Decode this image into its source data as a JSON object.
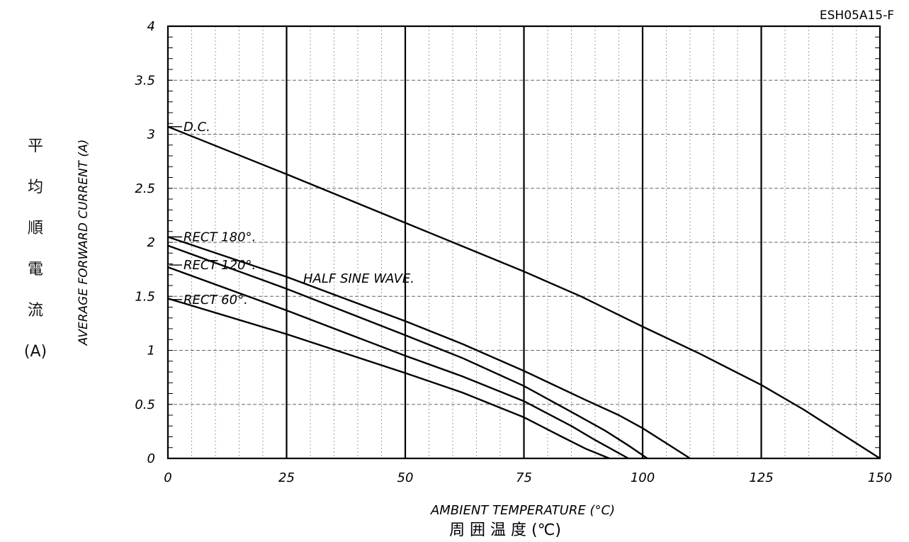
{
  "chart_data": {
    "type": "line",
    "chart_id": "ESH05A15-F",
    "xlabel": "AMBIENT TEMPERATURE (°C)",
    "xlabel_jp": "周 囲 温 度 (℃)",
    "ylabel": "AVERAGE FORWARD CURRENT (A)",
    "ylabel_jp": [
      "平",
      "均",
      "順",
      "電",
      "流",
      "(A)"
    ],
    "xlim": [
      0,
      150
    ],
    "ylim": [
      0,
      4
    ],
    "x_ticks": [
      "0",
      "25",
      "50",
      "75",
      "100",
      "125",
      "150"
    ],
    "y_ticks": [
      "0",
      "0.5",
      "1",
      "1.5",
      "2",
      "2.5",
      "3",
      "3.5",
      "4"
    ],
    "grid": true,
    "annotation": "HALF SINE WAVE.",
    "series": [
      {
        "name": "D.C.",
        "x": [
          0,
          25,
          50,
          75,
          87,
          100,
          112,
          125,
          134,
          150
        ],
        "y": [
          3.07,
          2.63,
          2.18,
          1.73,
          1.5,
          1.22,
          0.97,
          0.68,
          0.45,
          0.0
        ]
      },
      {
        "name": "RECT 180°.",
        "x": [
          0,
          25,
          50,
          62,
          75,
          88,
          95,
          100,
          105,
          110
        ],
        "y": [
          2.05,
          1.68,
          1.27,
          1.06,
          0.81,
          0.54,
          0.4,
          0.28,
          0.14,
          0.0
        ]
      },
      {
        "name": "RECT 120°.",
        "x": [
          0,
          25,
          50,
          62,
          75,
          85,
          92,
          97,
          101
        ],
        "y": [
          1.97,
          1.57,
          1.14,
          0.93,
          0.67,
          0.43,
          0.26,
          0.12,
          0.0
        ]
      },
      {
        "name": "RECT 60°.",
        "x": [
          0,
          25,
          50,
          62,
          75,
          85,
          90,
          97
        ],
        "y": [
          1.77,
          1.37,
          0.95,
          0.76,
          0.53,
          0.3,
          0.17,
          0.0
        ]
      },
      {
        "name": "",
        "x": [
          0,
          25,
          50,
          62,
          75,
          83,
          88,
          93
        ],
        "y": [
          1.48,
          1.15,
          0.79,
          0.61,
          0.38,
          0.2,
          0.09,
          0.0
        ]
      }
    ]
  }
}
